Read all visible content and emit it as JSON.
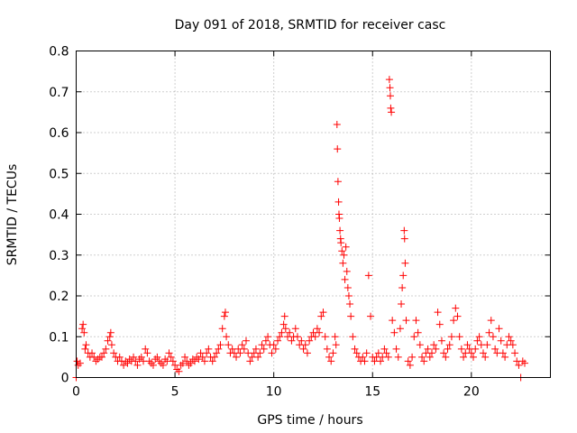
{
  "chart_data": {
    "type": "scatter",
    "title": "Day 091 of 2018, SRMTID for receiver casc",
    "xlabel": "GPS time / hours",
    "ylabel": "SRMTID / TECUs",
    "xlim": [
      0,
      24
    ],
    "ylim": [
      0,
      0.8
    ],
    "xticks": [
      0,
      5,
      10,
      15,
      20
    ],
    "xtick_labels": [
      "0",
      "5",
      "10",
      "15",
      "20"
    ],
    "yticks": [
      0,
      0.1,
      0.2,
      0.3,
      0.4,
      0.5,
      0.6,
      0.7,
      0.8
    ],
    "ytick_labels": [
      "0",
      "0.1",
      "0.2",
      "0.3",
      "0.4",
      "0.5",
      "0.6",
      "0.7",
      "0.8"
    ],
    "grid": true,
    "marker": "plus",
    "series": [
      {
        "name": "SRMTID",
        "color": "#ff0000",
        "points": [
          [
            0.0,
            0.0
          ],
          [
            0.05,
            0.04
          ],
          [
            0.1,
            0.03
          ],
          [
            0.2,
            0.035
          ],
          [
            0.3,
            0.12
          ],
          [
            0.35,
            0.13
          ],
          [
            0.4,
            0.11
          ],
          [
            0.45,
            0.07
          ],
          [
            0.5,
            0.08
          ],
          [
            0.6,
            0.06
          ],
          [
            0.7,
            0.05
          ],
          [
            0.8,
            0.06
          ],
          [
            0.9,
            0.05
          ],
          [
            1.0,
            0.04
          ],
          [
            1.1,
            0.045
          ],
          [
            1.2,
            0.05
          ],
          [
            1.3,
            0.05
          ],
          [
            1.4,
            0.06
          ],
          [
            1.5,
            0.07
          ],
          [
            1.6,
            0.09
          ],
          [
            1.7,
            0.1
          ],
          [
            1.75,
            0.11
          ],
          [
            1.8,
            0.08
          ],
          [
            1.9,
            0.06
          ],
          [
            2.0,
            0.05
          ],
          [
            2.1,
            0.04
          ],
          [
            2.2,
            0.05
          ],
          [
            2.3,
            0.04
          ],
          [
            2.4,
            0.03
          ],
          [
            2.5,
            0.04
          ],
          [
            2.6,
            0.035
          ],
          [
            2.7,
            0.045
          ],
          [
            2.8,
            0.04
          ],
          [
            2.9,
            0.05
          ],
          [
            3.0,
            0.04
          ],
          [
            3.1,
            0.03
          ],
          [
            3.2,
            0.045
          ],
          [
            3.3,
            0.05
          ],
          [
            3.4,
            0.04
          ],
          [
            3.5,
            0.07
          ],
          [
            3.6,
            0.06
          ],
          [
            3.7,
            0.04
          ],
          [
            3.8,
            0.035
          ],
          [
            3.9,
            0.03
          ],
          [
            4.0,
            0.045
          ],
          [
            4.1,
            0.05
          ],
          [
            4.2,
            0.04
          ],
          [
            4.3,
            0.035
          ],
          [
            4.4,
            0.03
          ],
          [
            4.5,
            0.045
          ],
          [
            4.6,
            0.04
          ],
          [
            4.7,
            0.06
          ],
          [
            4.8,
            0.05
          ],
          [
            4.9,
            0.04
          ],
          [
            5.0,
            0.03
          ],
          [
            5.1,
            0.02
          ],
          [
            5.2,
            0.015
          ],
          [
            5.3,
            0.03
          ],
          [
            5.4,
            0.035
          ],
          [
            5.5,
            0.05
          ],
          [
            5.6,
            0.04
          ],
          [
            5.7,
            0.03
          ],
          [
            5.8,
            0.035
          ],
          [
            5.9,
            0.045
          ],
          [
            6.0,
            0.04
          ],
          [
            6.1,
            0.05
          ],
          [
            6.2,
            0.045
          ],
          [
            6.3,
            0.06
          ],
          [
            6.4,
            0.05
          ],
          [
            6.5,
            0.04
          ],
          [
            6.6,
            0.06
          ],
          [
            6.7,
            0.07
          ],
          [
            6.8,
            0.05
          ],
          [
            6.9,
            0.04
          ],
          [
            7.0,
            0.05
          ],
          [
            7.1,
            0.06
          ],
          [
            7.2,
            0.07
          ],
          [
            7.3,
            0.08
          ],
          [
            7.4,
            0.12
          ],
          [
            7.5,
            0.15
          ],
          [
            7.55,
            0.16
          ],
          [
            7.6,
            0.1
          ],
          [
            7.7,
            0.08
          ],
          [
            7.8,
            0.06
          ],
          [
            7.9,
            0.07
          ],
          [
            8.0,
            0.06
          ],
          [
            8.1,
            0.05
          ],
          [
            8.2,
            0.07
          ],
          [
            8.3,
            0.06
          ],
          [
            8.4,
            0.08
          ],
          [
            8.5,
            0.07
          ],
          [
            8.6,
            0.09
          ],
          [
            8.7,
            0.06
          ],
          [
            8.8,
            0.04
          ],
          [
            8.9,
            0.05
          ],
          [
            9.0,
            0.06
          ],
          [
            9.1,
            0.07
          ],
          [
            9.2,
            0.05
          ],
          [
            9.3,
            0.06
          ],
          [
            9.4,
            0.08
          ],
          [
            9.5,
            0.07
          ],
          [
            9.6,
            0.09
          ],
          [
            9.7,
            0.1
          ],
          [
            9.8,
            0.08
          ],
          [
            9.9,
            0.06
          ],
          [
            10.0,
            0.08
          ],
          [
            10.1,
            0.07
          ],
          [
            10.2,
            0.09
          ],
          [
            10.3,
            0.1
          ],
          [
            10.4,
            0.11
          ],
          [
            10.5,
            0.13
          ],
          [
            10.55,
            0.15
          ],
          [
            10.6,
            0.12
          ],
          [
            10.7,
            0.1
          ],
          [
            10.8,
            0.11
          ],
          [
            10.9,
            0.09
          ],
          [
            11.0,
            0.1
          ],
          [
            11.1,
            0.12
          ],
          [
            11.2,
            0.1
          ],
          [
            11.3,
            0.08
          ],
          [
            11.4,
            0.09
          ],
          [
            11.5,
            0.07
          ],
          [
            11.6,
            0.08
          ],
          [
            11.7,
            0.06
          ],
          [
            11.8,
            0.09
          ],
          [
            11.9,
            0.1
          ],
          [
            12.0,
            0.11
          ],
          [
            12.1,
            0.1
          ],
          [
            12.2,
            0.12
          ],
          [
            12.3,
            0.11
          ],
          [
            12.4,
            0.15
          ],
          [
            12.5,
            0.16
          ],
          [
            12.6,
            0.1
          ],
          [
            12.7,
            0.07
          ],
          [
            12.8,
            0.05
          ],
          [
            12.9,
            0.04
          ],
          [
            13.0,
            0.06
          ],
          [
            13.1,
            0.1
          ],
          [
            13.15,
            0.08
          ],
          [
            13.2,
            0.62
          ],
          [
            13.22,
            0.56
          ],
          [
            13.25,
            0.48
          ],
          [
            13.28,
            0.43
          ],
          [
            13.3,
            0.4
          ],
          [
            13.32,
            0.39
          ],
          [
            13.35,
            0.36
          ],
          [
            13.38,
            0.34
          ],
          [
            13.4,
            0.33
          ],
          [
            13.45,
            0.31
          ],
          [
            13.5,
            0.28
          ],
          [
            13.55,
            0.3
          ],
          [
            13.6,
            0.24
          ],
          [
            13.65,
            0.32
          ],
          [
            13.7,
            0.26
          ],
          [
            13.75,
            0.22
          ],
          [
            13.8,
            0.2
          ],
          [
            13.85,
            0.18
          ],
          [
            13.9,
            0.15
          ],
          [
            14.0,
            0.1
          ],
          [
            14.1,
            0.07
          ],
          [
            14.2,
            0.06
          ],
          [
            14.3,
            0.05
          ],
          [
            14.4,
            0.04
          ],
          [
            14.5,
            0.05
          ],
          [
            14.6,
            0.04
          ],
          [
            14.7,
            0.06
          ],
          [
            14.8,
            0.25
          ],
          [
            14.9,
            0.15
          ],
          [
            15.0,
            0.05
          ],
          [
            15.1,
            0.04
          ],
          [
            15.2,
            0.05
          ],
          [
            15.3,
            0.06
          ],
          [
            15.4,
            0.04
          ],
          [
            15.5,
            0.05
          ],
          [
            15.6,
            0.07
          ],
          [
            15.7,
            0.06
          ],
          [
            15.8,
            0.05
          ],
          [
            15.85,
            0.73
          ],
          [
            15.88,
            0.71
          ],
          [
            15.9,
            0.69
          ],
          [
            15.92,
            0.66
          ],
          [
            15.95,
            0.65
          ],
          [
            16.0,
            0.14
          ],
          [
            16.1,
            0.11
          ],
          [
            16.2,
            0.07
          ],
          [
            16.3,
            0.05
          ],
          [
            16.4,
            0.12
          ],
          [
            16.45,
            0.18
          ],
          [
            16.5,
            0.22
          ],
          [
            16.55,
            0.25
          ],
          [
            16.6,
            0.36
          ],
          [
            16.62,
            0.34
          ],
          [
            16.65,
            0.28
          ],
          [
            16.7,
            0.14
          ],
          [
            16.8,
            0.04
          ],
          [
            16.9,
            0.03
          ],
          [
            17.0,
            0.05
          ],
          [
            17.1,
            0.1
          ],
          [
            17.2,
            0.14
          ],
          [
            17.3,
            0.11
          ],
          [
            17.4,
            0.08
          ],
          [
            17.5,
            0.05
          ],
          [
            17.6,
            0.04
          ],
          [
            17.7,
            0.06
          ],
          [
            17.8,
            0.07
          ],
          [
            17.9,
            0.05
          ],
          [
            18.0,
            0.06
          ],
          [
            18.1,
            0.08
          ],
          [
            18.2,
            0.07
          ],
          [
            18.3,
            0.16
          ],
          [
            18.4,
            0.13
          ],
          [
            18.5,
            0.09
          ],
          [
            18.6,
            0.06
          ],
          [
            18.7,
            0.05
          ],
          [
            18.8,
            0.07
          ],
          [
            18.9,
            0.08
          ],
          [
            19.0,
            0.1
          ],
          [
            19.1,
            0.14
          ],
          [
            19.2,
            0.17
          ],
          [
            19.3,
            0.15
          ],
          [
            19.4,
            0.1
          ],
          [
            19.5,
            0.07
          ],
          [
            19.6,
            0.05
          ],
          [
            19.7,
            0.06
          ],
          [
            19.8,
            0.08
          ],
          [
            19.9,
            0.07
          ],
          [
            20.0,
            0.06
          ],
          [
            20.1,
            0.05
          ],
          [
            20.2,
            0.07
          ],
          [
            20.3,
            0.09
          ],
          [
            20.4,
            0.1
          ],
          [
            20.5,
            0.08
          ],
          [
            20.6,
            0.06
          ],
          [
            20.7,
            0.05
          ],
          [
            20.8,
            0.08
          ],
          [
            20.9,
            0.11
          ],
          [
            21.0,
            0.14
          ],
          [
            21.1,
            0.1
          ],
          [
            21.2,
            0.07
          ],
          [
            21.3,
            0.06
          ],
          [
            21.4,
            0.12
          ],
          [
            21.5,
            0.09
          ],
          [
            21.6,
            0.06
          ],
          [
            21.7,
            0.05
          ],
          [
            21.8,
            0.08
          ],
          [
            21.9,
            0.1
          ],
          [
            22.0,
            0.09
          ],
          [
            22.1,
            0.08
          ],
          [
            22.2,
            0.06
          ],
          [
            22.3,
            0.04
          ],
          [
            22.4,
            0.03
          ],
          [
            22.5,
            0.0
          ],
          [
            22.6,
            0.04
          ],
          [
            22.7,
            0.035
          ]
        ]
      }
    ]
  }
}
